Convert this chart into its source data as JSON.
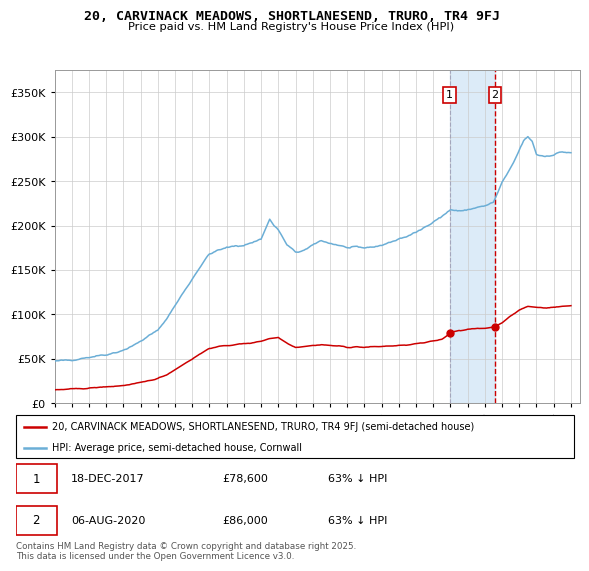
{
  "title": "20, CARVINACK MEADOWS, SHORTLANESEND, TRURO, TR4 9FJ",
  "subtitle": "Price paid vs. HM Land Registry's House Price Index (HPI)",
  "legend_line1": "20, CARVINACK MEADOWS, SHORTLANESEND, TRURO, TR4 9FJ (semi-detached house)",
  "legend_line2": "HPI: Average price, semi-detached house, Cornwall",
  "annotation1_date": "18-DEC-2017",
  "annotation1_value": "£78,600",
  "annotation1_hpi": "63% ↓ HPI",
  "annotation2_date": "06-AUG-2020",
  "annotation2_value": "£86,000",
  "annotation2_hpi": "63% ↓ HPI",
  "footer": "Contains HM Land Registry data © Crown copyright and database right 2025.\nThis data is licensed under the Open Government Licence v3.0.",
  "hpi_color": "#6baed6",
  "price_color": "#cc0000",
  "sale1_date_num": 2017.96,
  "sale2_date_num": 2020.59,
  "sale1_price": 78600,
  "sale2_price": 86000,
  "ylim": [
    0,
    375000
  ],
  "xlim_start": 1995.0,
  "xlim_end": 2025.5,
  "hpi_times": [
    1995.0,
    1995.5,
    1996.0,
    1996.5,
    1997.0,
    1997.5,
    1998.0,
    1998.5,
    1999.0,
    1999.5,
    2000.0,
    2000.5,
    2001.0,
    2001.5,
    2002.0,
    2002.5,
    2003.0,
    2003.5,
    2004.0,
    2004.5,
    2005.0,
    2005.5,
    2006.0,
    2006.5,
    2007.0,
    2007.25,
    2007.5,
    2007.75,
    2008.0,
    2008.25,
    2008.5,
    2008.75,
    2009.0,
    2009.25,
    2009.5,
    2009.75,
    2010.0,
    2010.25,
    2010.5,
    2010.75,
    2011.0,
    2011.5,
    2012.0,
    2012.5,
    2013.0,
    2013.5,
    2014.0,
    2014.5,
    2015.0,
    2015.5,
    2016.0,
    2016.5,
    2017.0,
    2017.5,
    2018.0,
    2018.5,
    2019.0,
    2019.5,
    2020.0,
    2020.5,
    2021.0,
    2021.25,
    2021.5,
    2021.75,
    2022.0,
    2022.25,
    2022.5,
    2022.75,
    2023.0,
    2023.5,
    2024.0,
    2024.5,
    2025.0
  ],
  "hpi_values": [
    47000,
    48000,
    49000,
    50500,
    52000,
    53500,
    55000,
    57000,
    60000,
    64000,
    70000,
    76000,
    82000,
    95000,
    110000,
    125000,
    140000,
    155000,
    168000,
    172000,
    175000,
    177000,
    178000,
    181000,
    185000,
    196000,
    207000,
    200000,
    195000,
    187000,
    178000,
    174000,
    170000,
    171000,
    172000,
    174000,
    178000,
    181000,
    183000,
    182000,
    180000,
    178000,
    175000,
    175000,
    175000,
    176000,
    178000,
    181000,
    185000,
    188000,
    192000,
    198000,
    205000,
    210000,
    218000,
    216000,
    218000,
    220000,
    222000,
    226000,
    248000,
    256000,
    265000,
    274000,
    285000,
    295000,
    300000,
    295000,
    280000,
    278000,
    280000,
    283000,
    282000
  ],
  "price_times": [
    1995.0,
    1995.5,
    1996.0,
    1996.5,
    1997.0,
    1997.5,
    1998.0,
    1998.5,
    1999.0,
    1999.5,
    2000.0,
    2000.5,
    2001.0,
    2001.5,
    2002.0,
    2002.5,
    2003.0,
    2003.5,
    2004.0,
    2004.5,
    2005.0,
    2005.5,
    2006.0,
    2006.5,
    2007.0,
    2007.5,
    2008.0,
    2008.5,
    2009.0,
    2009.5,
    2010.0,
    2010.5,
    2011.0,
    2011.5,
    2012.0,
    2012.5,
    2013.0,
    2013.5,
    2014.0,
    2014.5,
    2015.0,
    2015.5,
    2016.0,
    2016.5,
    2017.0,
    2017.5,
    2017.96,
    2018.0,
    2018.5,
    2019.0,
    2019.5,
    2020.0,
    2020.59,
    2021.0,
    2021.5,
    2022.0,
    2022.5,
    2023.0,
    2023.5,
    2024.0,
    2024.5,
    2025.0
  ],
  "price_values": [
    15000,
    15500,
    16000,
    16500,
    17000,
    17800,
    18500,
    19200,
    20000,
    21500,
    23000,
    25500,
    28000,
    32000,
    38000,
    44000,
    50000,
    56000,
    62000,
    63500,
    65000,
    66000,
    67000,
    68000,
    70000,
    73000,
    74000,
    68000,
    63000,
    64000,
    65000,
    66000,
    65000,
    64500,
    63000,
    63500,
    63000,
    63500,
    64000,
    64500,
    65000,
    65500,
    67000,
    68000,
    70000,
    72000,
    78600,
    80000,
    82000,
    83000,
    84000,
    84500,
    86000,
    91000,
    98000,
    105000,
    109000,
    108000,
    107500,
    108000,
    109000,
    110000
  ]
}
